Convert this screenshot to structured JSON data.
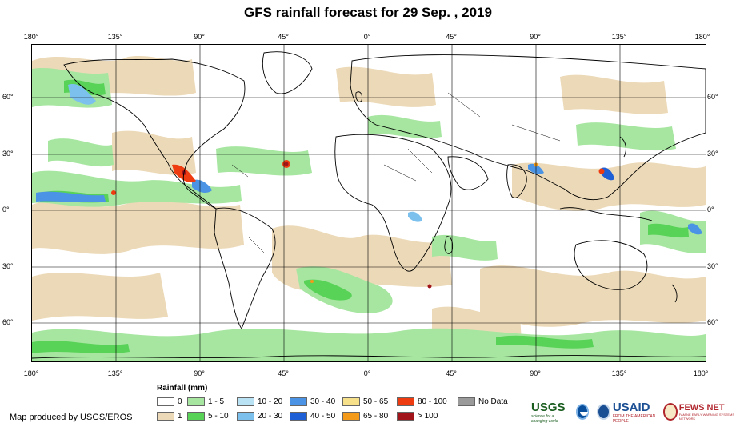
{
  "title": "GFS rainfall forecast for 29 Sep. , 2019",
  "axes": {
    "top_ticks": [
      "180°",
      "135°",
      "90°",
      "45°",
      "0°",
      "45°",
      "90°",
      "135°",
      "180°"
    ],
    "bottom_ticks": [
      "180°",
      "135°",
      "90°",
      "45°",
      "0°",
      "45°",
      "90°",
      "135°",
      "180°"
    ],
    "left_ticks": [
      "60°",
      "30°",
      "0°",
      "30°",
      "60°"
    ],
    "right_ticks": [
      "60°",
      "30°",
      "0°",
      "30°",
      "60°"
    ]
  },
  "legend": {
    "title": "Rainfall (mm)",
    "items": [
      {
        "label": "0",
        "color": "#ffffff"
      },
      {
        "label": "1",
        "color": "#ecd9b7"
      },
      {
        "label": "1 - 5",
        "color": "#a6e6a0"
      },
      {
        "label": "5 - 10",
        "color": "#58d257"
      },
      {
        "label": "10 - 20",
        "color": "#b9e3f5"
      },
      {
        "label": "20 - 30",
        "color": "#7cc1ee"
      },
      {
        "label": "30 - 40",
        "color": "#4b94e5"
      },
      {
        "label": "40 - 50",
        "color": "#1e5fd6"
      },
      {
        "label": "50 - 65",
        "color": "#f6e08a"
      },
      {
        "label": "65 - 80",
        "color": "#f39a1a"
      },
      {
        "label": "80 - 100",
        "color": "#ef3b10"
      },
      {
        "label": "> 100",
        "color": "#a1141a"
      },
      {
        "label": "No Data",
        "color": "#9a9a9a"
      }
    ]
  },
  "credit": "Map produced by USGS/EROS",
  "logos": {
    "usgs": "USGS",
    "usgs_tagline": "science for a changing world",
    "noaa": "noaa-logo",
    "usaid": "USAID",
    "usaid_tagline": "FROM THE AMERICAN PEOPLE",
    "fews": "FEWS NET",
    "fews_tagline": "FAMINE EARLY WARNING SYSTEMS NETWORK"
  }
}
